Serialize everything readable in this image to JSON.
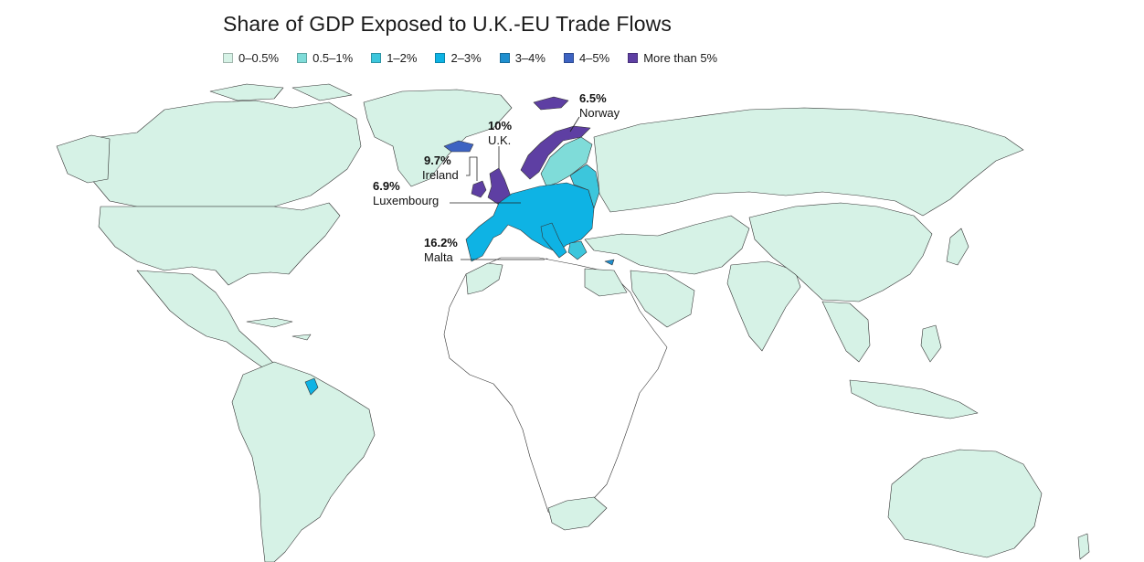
{
  "title": "Share of GDP Exposed to U.K.-EU Trade Flows",
  "legend": [
    {
      "label": "0–0.5%",
      "color": "#d6f2e6"
    },
    {
      "label": "0.5–1%",
      "color": "#7fdcd9"
    },
    {
      "label": "1–2%",
      "color": "#3cc6dc"
    },
    {
      "label": "2–3%",
      "color": "#0eb3e4"
    },
    {
      "label": "3–4%",
      "color": "#1f8fcf"
    },
    {
      "label": "4–5%",
      "color": "#3d63c2"
    },
    {
      "label": "More than 5%",
      "color": "#5e3fa3"
    }
  ],
  "colors": {
    "africa_other": "#ffffff"
  },
  "callouts": [
    {
      "id": "norway",
      "value": "6.5%",
      "name": "Norway"
    },
    {
      "id": "uk",
      "value": "10%",
      "name": "U.K."
    },
    {
      "id": "ireland",
      "value": "9.7%",
      "name": "Ireland"
    },
    {
      "id": "luxembourg",
      "value": "6.9%",
      "name": "Luxembourg"
    },
    {
      "id": "malta",
      "value": "16.2%",
      "name": "Malta"
    }
  ]
}
